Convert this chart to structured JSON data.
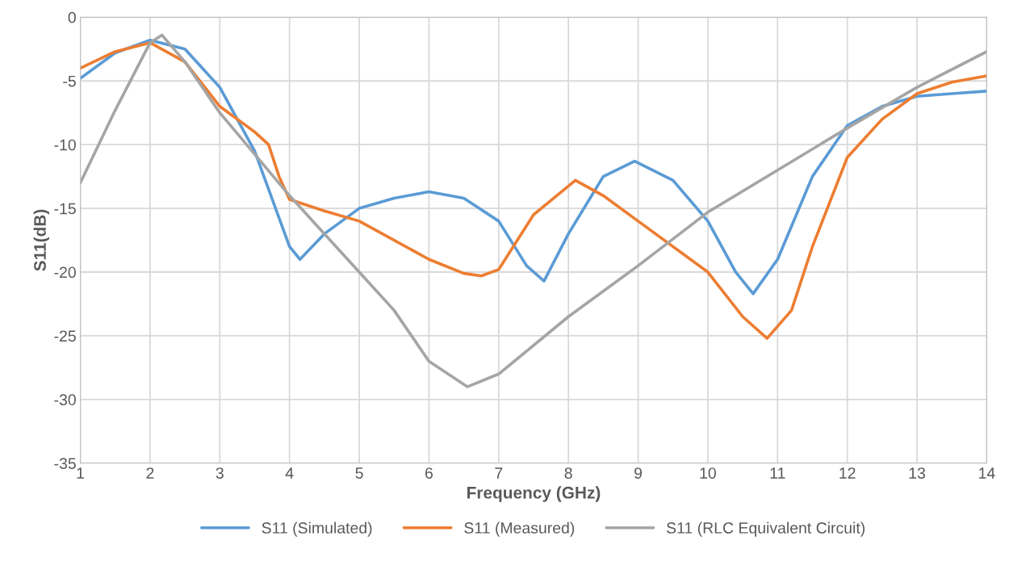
{
  "chart_data": {
    "type": "line",
    "xlabel": "Frequency (GHz)",
    "ylabel": "S11(dB)",
    "xlim": [
      1,
      14
    ],
    "ylim": [
      -35,
      0
    ],
    "xticks": [
      1,
      2,
      3,
      4,
      5,
      6,
      7,
      8,
      9,
      10,
      11,
      12,
      13,
      14
    ],
    "yticks": [
      -35,
      -30,
      -25,
      -20,
      -15,
      -10,
      -5,
      0
    ],
    "grid": true,
    "legend": "bottom",
    "marker": "none",
    "line_style": "solid",
    "series": [
      {
        "name": "S11 (Simulated)",
        "color": "#5b9bd5",
        "x": [
          1,
          1.5,
          2,
          2.5,
          3,
          3.5,
          4,
          4.15,
          4.5,
          5,
          5.5,
          6,
          6.5,
          7,
          7.4,
          7.65,
          8,
          8.5,
          8.95,
          9.5,
          10,
          10.4,
          10.65,
          11,
          11.5,
          12,
          12.5,
          13,
          13.5,
          14
        ],
        "values": [
          -4.8,
          -2.8,
          -1.8,
          -2.5,
          -5.5,
          -10.5,
          -18,
          -19,
          -17,
          -15,
          -14.2,
          -13.7,
          -14.2,
          -16,
          -19.5,
          -20.7,
          -17,
          -12.5,
          -11.3,
          -12.8,
          -16,
          -20,
          -21.7,
          -19,
          -12.5,
          -8.5,
          -7,
          -6.2,
          -6,
          -5.8
        ]
      },
      {
        "name": "S11 (Measured)",
        "color": "#ed7d31",
        "x": [
          1,
          1.5,
          2,
          2.5,
          3,
          3.5,
          3.7,
          3.85,
          4,
          4.5,
          5,
          6,
          6.5,
          6.75,
          7,
          7.5,
          8.1,
          8.5,
          9,
          10,
          10.5,
          10.85,
          11.2,
          11.5,
          12,
          12.5,
          13,
          13.5,
          14
        ],
        "values": [
          -4,
          -2.7,
          -2,
          -3.5,
          -7,
          -9,
          -10,
          -12.5,
          -14.3,
          -15.2,
          -16,
          -19,
          -20.1,
          -20.3,
          -19.8,
          -15.5,
          -12.8,
          -14,
          -16,
          -20,
          -23.5,
          -25.2,
          -23,
          -18,
          -11,
          -8,
          -6,
          -5.1,
          -4.6
        ]
      },
      {
        "name": "S11 (RLC Equivalent Circuit)",
        "color": "#a5a5a5",
        "x": [
          1,
          1.5,
          2,
          2.17,
          2.5,
          3,
          4,
          5,
          5.5,
          6,
          6.55,
          7,
          8,
          9,
          10,
          11,
          12,
          13,
          14
        ],
        "values": [
          -13,
          -7.3,
          -2,
          -1.4,
          -3.5,
          -7.5,
          -14,
          -20,
          -23,
          -27,
          -29,
          -28,
          -23.5,
          -19.5,
          -15.3,
          -12,
          -8.7,
          -5.5,
          -2.7
        ]
      }
    ]
  }
}
